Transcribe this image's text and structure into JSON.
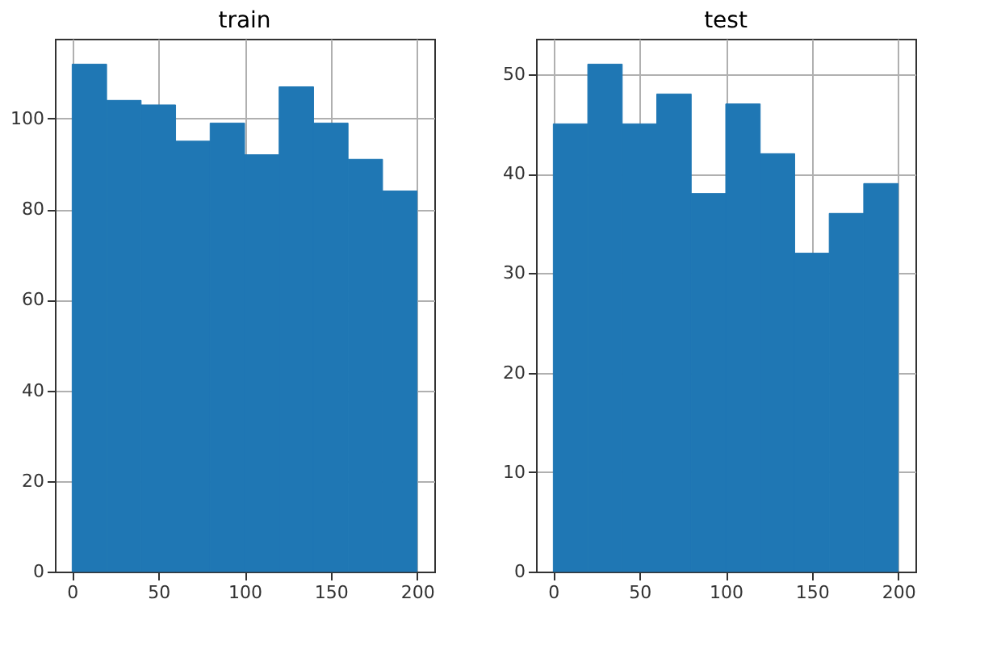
{
  "chart_data": [
    {
      "type": "histogram",
      "title": "train",
      "bins": [
        0,
        20,
        40,
        60,
        80,
        100,
        120,
        140,
        160,
        180,
        200
      ],
      "values": [
        112,
        104,
        103,
        95,
        99,
        92,
        107,
        99,
        91,
        84
      ],
      "color": "#1f77b4",
      "xlim": [
        -10,
        210
      ],
      "xticks": [
        0,
        50,
        100,
        150,
        200
      ],
      "ylim": [
        0,
        117.6
      ],
      "yticks": [
        0,
        20,
        40,
        60,
        80,
        100
      ],
      "grid": true
    },
    {
      "type": "histogram",
      "title": "test",
      "bins": [
        0,
        20,
        40,
        60,
        80,
        100,
        120,
        140,
        160,
        180,
        200
      ],
      "values": [
        45,
        51,
        45,
        48,
        38,
        47,
        42,
        32,
        36,
        39
      ],
      "color": "#1f77b4",
      "xlim": [
        -10,
        210
      ],
      "xticks": [
        0,
        50,
        100,
        150,
        200
      ],
      "ylim": [
        0,
        53.55
      ],
      "yticks": [
        0,
        10,
        20,
        30,
        40,
        50
      ],
      "grid": true
    }
  ]
}
